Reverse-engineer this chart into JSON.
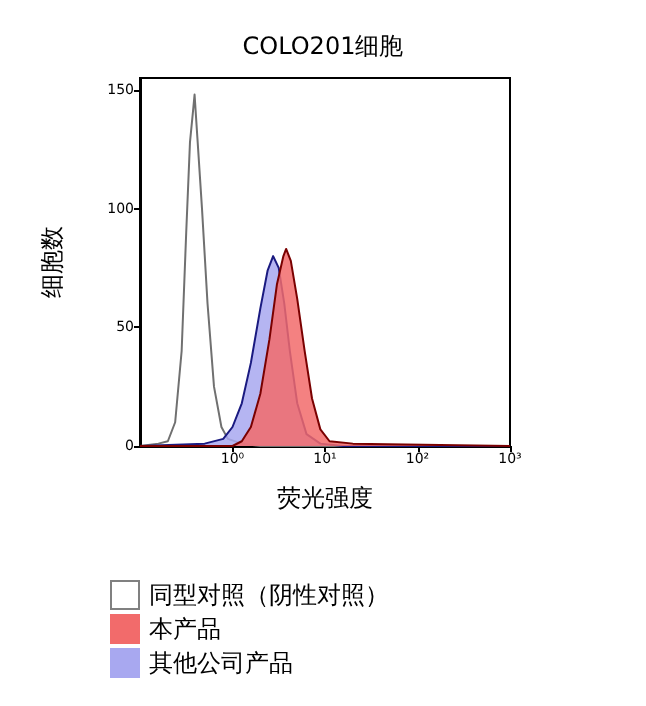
{
  "chart_data": {
    "type": "area",
    "title": "COLO201细胞",
    "xlabel": "荧光强度",
    "ylabel": "细胞数",
    "log": "x",
    "xlim": [
      0.1,
      1000
    ],
    "xticks": [
      {
        "value": 1,
        "label": "10⁰"
      },
      {
        "value": 10,
        "label": "10¹"
      },
      {
        "value": 100,
        "label": "10²"
      },
      {
        "value": 1000,
        "label": "10³"
      }
    ],
    "ylim": [
      0,
      155
    ],
    "yticks": [
      0,
      50,
      100,
      150
    ],
    "grid": false,
    "legend": "bottom",
    "marker": "none",
    "series": [
      {
        "name": "同型对照（阴性对照）",
        "color": "#808080",
        "x": [
          0.1,
          0.158,
          0.2,
          0.24,
          0.282,
          0.316,
          0.347,
          0.372,
          0.389,
          0.417,
          0.468,
          0.537,
          0.631,
          0.759,
          0.891,
          1.26,
          2,
          1000
        ],
        "values": [
          0,
          1,
          2,
          10,
          40,
          90,
          128,
          140,
          148,
          130,
          100,
          60,
          25,
          8,
          3,
          1,
          0,
          0
        ]
      },
      {
        "name": "本产品",
        "color": "#f26b6b",
        "x": [
          0.1,
          1,
          1.26,
          1.58,
          2,
          2.51,
          3.02,
          3.55,
          3.8,
          4.27,
          5.01,
          6.03,
          7.24,
          8.91,
          11.2,
          20,
          1000
        ],
        "values": [
          0,
          0,
          2,
          8,
          22,
          45,
          68,
          80,
          83,
          78,
          62,
          40,
          20,
          7,
          2,
          1,
          0
        ]
      },
      {
        "name": "其他公司产品",
        "color": "#a8a8f0",
        "x": [
          0.1,
          0.5,
          0.794,
          1,
          1.26,
          1.58,
          2,
          2.4,
          2.75,
          3.16,
          3.63,
          4.17,
          5.01,
          6.31,
          8.91,
          15.8,
          1000
        ],
        "values": [
          0,
          1,
          3,
          8,
          18,
          35,
          58,
          74,
          80,
          75,
          60,
          40,
          18,
          5,
          1,
          0,
          0
        ]
      }
    ]
  }
}
